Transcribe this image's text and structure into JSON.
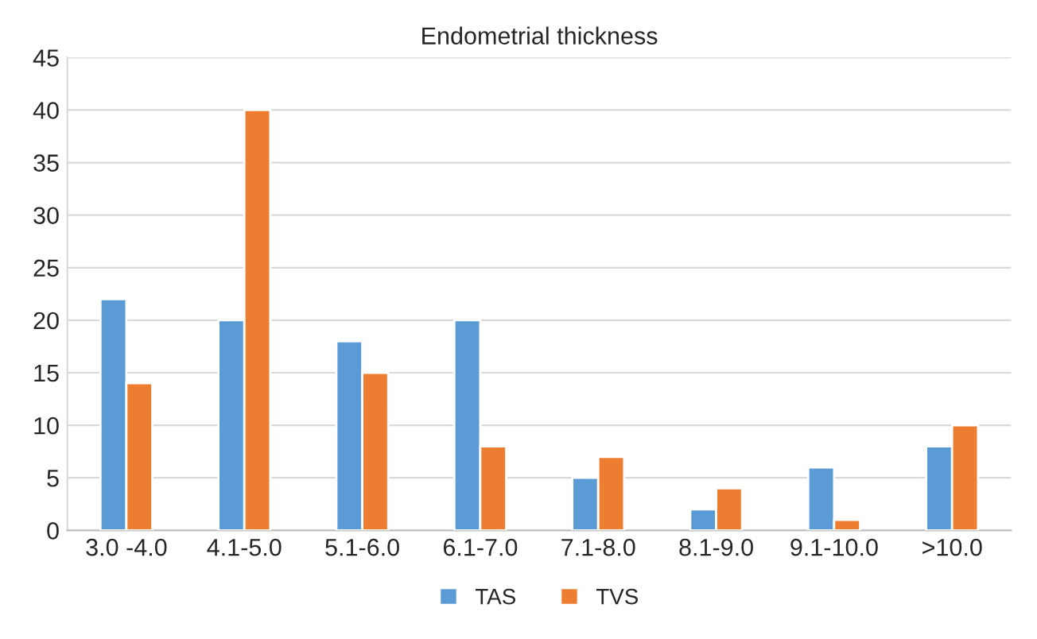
{
  "chart_data": {
    "type": "bar",
    "title": "Endometrial thickness",
    "categories": [
      "3.0 -4.0",
      "4.1-5.0",
      "5.1-6.0",
      "6.1-7.0",
      "7.1-8.0",
      "8.1-9.0",
      "9.1-10.0",
      ">10.0"
    ],
    "series": [
      {
        "name": "TAS",
        "color": "#5b9bd5",
        "values": [
          22,
          20,
          18,
          20,
          5,
          2,
          6,
          8
        ]
      },
      {
        "name": "TVS",
        "color": "#ed7d31",
        "values": [
          14,
          40,
          15,
          8,
          7,
          4,
          1,
          10
        ]
      }
    ],
    "ylim": [
      0,
      45
    ],
    "yticks": [
      0,
      5,
      10,
      15,
      20,
      25,
      30,
      35,
      40,
      45
    ],
    "grid": "y",
    "legend": "bottom"
  }
}
